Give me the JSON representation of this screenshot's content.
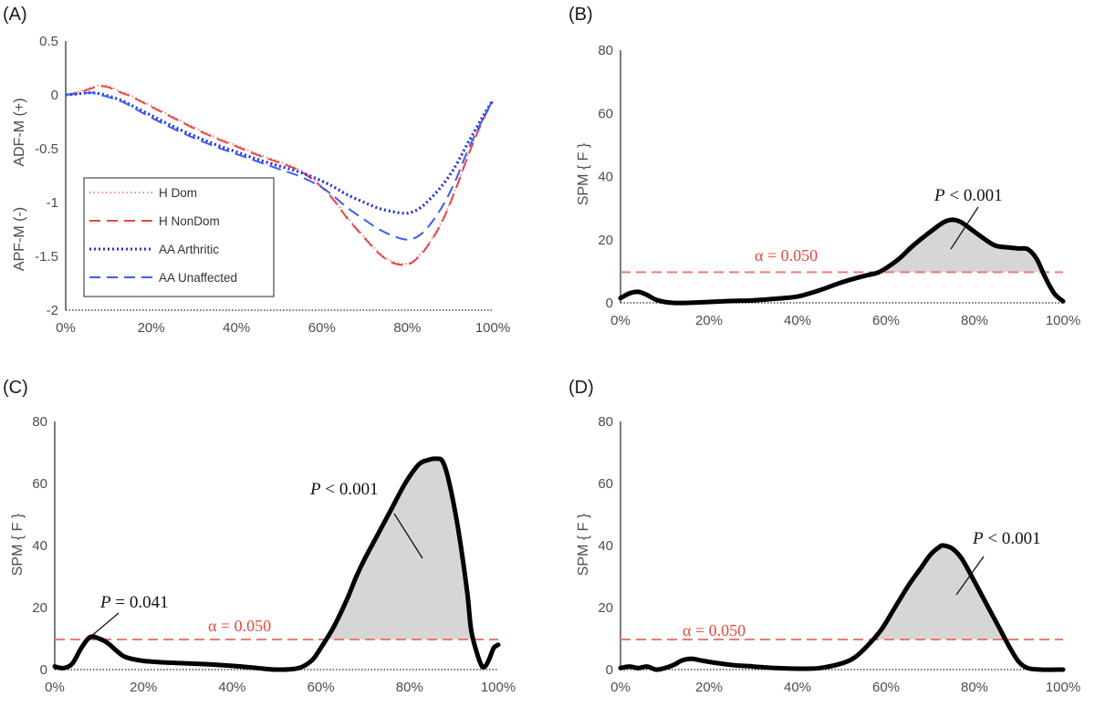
{
  "chart_data": [
    {
      "panel": "(A)",
      "type": "line",
      "ylabel_top": "ADF-M (+)",
      "ylabel_bottom": "APF-M (-)",
      "xlim": [
        0,
        100
      ],
      "ylim": [
        -2,
        0.5
      ],
      "xticks": [
        "0%",
        "20%",
        "40%",
        "60%",
        "80%",
        "100%"
      ],
      "yticks": [
        "0.5",
        "0",
        "-0.5",
        "-1",
        "-1.5",
        "-2"
      ],
      "legend_position": "lower-left",
      "series": [
        {
          "name": "H Dom",
          "color": "#f08a8a",
          "style": "dotted",
          "x": [
            0,
            3,
            6,
            8,
            10,
            13,
            15,
            20,
            25,
            30,
            35,
            40,
            45,
            50,
            55,
            60,
            63,
            66,
            70,
            73,
            76,
            79,
            81,
            83,
            85,
            88,
            91,
            94,
            96,
            98,
            100
          ],
          "y": [
            0,
            0.03,
            0.07,
            0.09,
            0.08,
            0.03,
            0,
            -0.1,
            -0.2,
            -0.3,
            -0.39,
            -0.47,
            -0.55,
            -0.62,
            -0.7,
            -0.85,
            -0.98,
            -1.14,
            -1.32,
            -1.45,
            -1.54,
            -1.57,
            -1.55,
            -1.48,
            -1.38,
            -1.18,
            -0.9,
            -0.58,
            -0.38,
            -0.2,
            -0.05
          ]
        },
        {
          "name": "H NonDom",
          "color": "#e8473f",
          "style": "dashed",
          "x": [
            0,
            3,
            6,
            8,
            10,
            13,
            15,
            20,
            25,
            30,
            35,
            40,
            45,
            50,
            55,
            60,
            63,
            66,
            70,
            73,
            76,
            79,
            81,
            83,
            85,
            88,
            91,
            94,
            96,
            98,
            100
          ],
          "y": [
            0,
            0.02,
            0.06,
            0.08,
            0.07,
            0.02,
            -0.01,
            -0.11,
            -0.21,
            -0.31,
            -0.4,
            -0.48,
            -0.56,
            -0.63,
            -0.71,
            -0.86,
            -0.99,
            -1.15,
            -1.33,
            -1.46,
            -1.55,
            -1.58,
            -1.56,
            -1.49,
            -1.39,
            -1.19,
            -0.91,
            -0.59,
            -0.39,
            -0.21,
            -0.06
          ]
        },
        {
          "name": "AA Arthritic",
          "color": "#1f2ee0",
          "style": "dotted",
          "x": [
            0,
            3,
            6,
            8,
            10,
            13,
            15,
            20,
            25,
            30,
            35,
            40,
            45,
            50,
            55,
            60,
            63,
            66,
            70,
            73,
            76,
            79,
            81,
            83,
            85,
            88,
            91,
            94,
            96,
            98,
            100
          ],
          "y": [
            0,
            0.01,
            0.02,
            0.01,
            -0.01,
            -0.05,
            -0.09,
            -0.19,
            -0.29,
            -0.38,
            -0.46,
            -0.53,
            -0.6,
            -0.66,
            -0.72,
            -0.8,
            -0.86,
            -0.93,
            -1.0,
            -1.05,
            -1.08,
            -1.1,
            -1.09,
            -1.05,
            -0.98,
            -0.85,
            -0.68,
            -0.46,
            -0.32,
            -0.18,
            -0.05
          ]
        },
        {
          "name": "AA Unaffected",
          "color": "#3b5ff0",
          "style": "dashed",
          "x": [
            0,
            3,
            6,
            8,
            10,
            13,
            15,
            20,
            25,
            30,
            35,
            40,
            45,
            50,
            55,
            60,
            63,
            66,
            70,
            73,
            76,
            79,
            81,
            83,
            85,
            88,
            91,
            94,
            96,
            98,
            100
          ],
          "y": [
            0,
            0.01,
            0.02,
            0,
            -0.02,
            -0.06,
            -0.1,
            -0.21,
            -0.31,
            -0.4,
            -0.48,
            -0.55,
            -0.62,
            -0.69,
            -0.76,
            -0.86,
            -0.95,
            -1.05,
            -1.16,
            -1.24,
            -1.3,
            -1.34,
            -1.34,
            -1.3,
            -1.22,
            -1.05,
            -0.82,
            -0.53,
            -0.36,
            -0.2,
            -0.05
          ]
        }
      ]
    },
    {
      "panel": "(B)",
      "type": "area",
      "ylabel": "SPM { F }",
      "xlim": [
        0,
        100
      ],
      "ylim": [
        0,
        80
      ],
      "xticks": [
        "0%",
        "20%",
        "40%",
        "60%",
        "80%",
        "100%"
      ],
      "yticks": [
        "0",
        "20",
        "40",
        "60",
        "80"
      ],
      "threshold": 9.7,
      "threshold_label": "α = 0.050",
      "annotations": [
        {
          "italic": "P",
          "text": " < 0.001"
        }
      ],
      "x": [
        0,
        2,
        4,
        6,
        8,
        10,
        12,
        15,
        20,
        25,
        30,
        35,
        40,
        45,
        50,
        55,
        58,
        60,
        63,
        66,
        70,
        73,
        75,
        77,
        80,
        83,
        85,
        88,
        90,
        92,
        94,
        96,
        98,
        100
      ],
      "y": [
        1.5,
        3,
        3.5,
        2.5,
        1,
        0.3,
        0,
        0,
        0.3,
        0.6,
        0.8,
        1.3,
        2,
        4,
        6.5,
        8.5,
        9.5,
        11,
        14,
        18,
        22.5,
        25.5,
        26.3,
        25.5,
        22.5,
        19.5,
        18,
        17.5,
        17.2,
        17,
        14,
        8,
        3,
        0.5
      ]
    },
    {
      "panel": "(C)",
      "type": "area",
      "ylabel": "SPM { F }",
      "xlim": [
        0,
        100
      ],
      "ylim": [
        0,
        80
      ],
      "xticks": [
        "0%",
        "20%",
        "40%",
        "60%",
        "80%",
        "100%"
      ],
      "yticks": [
        "0",
        "20",
        "40",
        "60",
        "80"
      ],
      "threshold": 9.7,
      "threshold_label": "α = 0.050",
      "annotations": [
        {
          "italic": "P",
          "text": " = 0.041"
        },
        {
          "italic": "P",
          "text": " < 0.001"
        }
      ],
      "x": [
        0,
        2,
        4,
        6,
        8,
        10,
        12,
        14,
        16,
        20,
        25,
        30,
        35,
        40,
        45,
        50,
        55,
        58,
        60,
        63,
        66,
        68,
        70,
        73,
        76,
        79,
        82,
        84,
        86,
        87.5,
        89,
        91,
        93,
        94,
        96,
        97,
        98,
        99,
        100
      ],
      "y": [
        1,
        0.5,
        2,
        7,
        10.5,
        10,
        8.5,
        6,
        4,
        2.8,
        2.3,
        2,
        1.7,
        1.2,
        0.6,
        0,
        0.5,
        3,
        7,
        14,
        23,
        30,
        36,
        44,
        52,
        60,
        66,
        67.5,
        68,
        67,
        60,
        45,
        25,
        12,
        2,
        1,
        3.5,
        7,
        8
      ]
    },
    {
      "panel": "(D)",
      "type": "area",
      "ylabel": "SPM { F }",
      "xlim": [
        0,
        100
      ],
      "ylim": [
        0,
        80
      ],
      "xticks": [
        "0%",
        "20%",
        "40%",
        "60%",
        "80%",
        "100%"
      ],
      "yticks": [
        "0",
        "20",
        "40",
        "60",
        "80"
      ],
      "threshold": 9.7,
      "threshold_label": "α = 0.050",
      "annotations": [
        {
          "italic": "P",
          "text": " < 0.001"
        }
      ],
      "x": [
        0,
        2,
        4,
        6,
        8,
        10,
        12,
        14,
        16,
        18,
        20,
        25,
        30,
        35,
        40,
        45,
        50,
        53,
        56,
        59,
        62,
        65,
        68,
        70,
        72,
        73,
        75,
        77,
        79,
        82,
        85,
        88,
        90,
        92,
        95,
        100
      ],
      "y": [
        0.5,
        1,
        0.5,
        1,
        0,
        0.5,
        1.5,
        3,
        3.5,
        3,
        2.5,
        1.5,
        1,
        0.5,
        0.3,
        0.5,
        2,
        4,
        8,
        13,
        20,
        27,
        33,
        37,
        39.5,
        40,
        39,
        36,
        31,
        23,
        15,
        7,
        2.5,
        0.5,
        0,
        0
      ]
    }
  ]
}
